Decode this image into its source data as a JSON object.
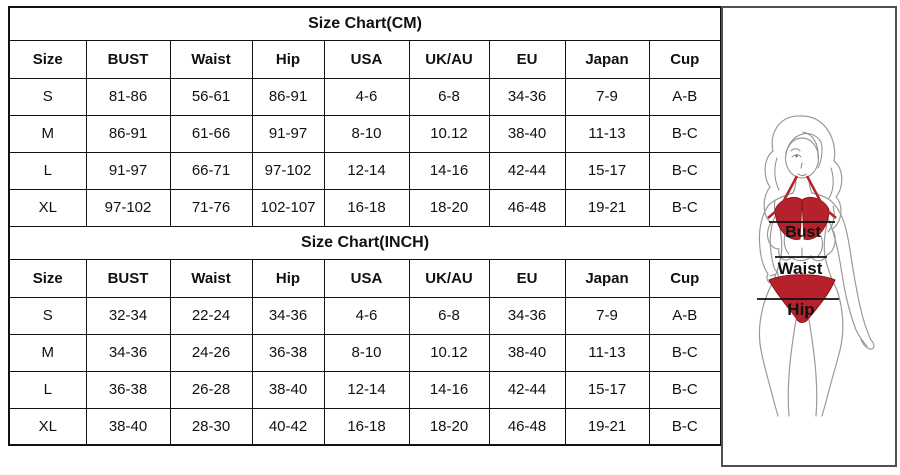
{
  "tables": [
    {
      "title": "Size Chart(CM)",
      "headers": [
        "Size",
        "BUST",
        "Waist",
        "Hip",
        "USA",
        "UK/AU",
        "EU",
        "Japan",
        "Cup"
      ],
      "rows": [
        [
          "S",
          "81-86",
          "56-61",
          "86-91",
          "4-6",
          "6-8",
          "34-36",
          "7-9",
          "A-B"
        ],
        [
          "M",
          "86-91",
          "61-66",
          "91-97",
          "8-10",
          "10.12",
          "38-40",
          "11-13",
          "B-C"
        ],
        [
          "L",
          "91-97",
          "66-71",
          "97-102",
          "12-14",
          "14-16",
          "42-44",
          "15-17",
          "B-C"
        ],
        [
          "XL",
          "97-102",
          "71-76",
          "102-107",
          "16-18",
          "18-20",
          "46-48",
          "19-21",
          "B-C"
        ]
      ]
    },
    {
      "title": "Size Chart(INCH)",
      "headers": [
        "Size",
        "BUST",
        "Waist",
        "Hip",
        "USA",
        "UK/AU",
        "EU",
        "Japan",
        "Cup"
      ],
      "rows": [
        [
          "S",
          "32-34",
          "22-24",
          "34-36",
          "4-6",
          "6-8",
          "34-36",
          "7-9",
          "A-B"
        ],
        [
          "M",
          "34-36",
          "24-26",
          "36-38",
          "8-10",
          "10.12",
          "38-40",
          "11-13",
          "B-C"
        ],
        [
          "L",
          "36-38",
          "26-28",
          "38-40",
          "12-14",
          "14-16",
          "42-44",
          "15-17",
          "B-C"
        ],
        [
          "XL",
          "38-40",
          "28-30",
          "40-42",
          "16-18",
          "18-20",
          "46-48",
          "19-21",
          "B-C"
        ]
      ]
    }
  ],
  "figure": {
    "labels": {
      "bust": "Bust",
      "waist": "Waist",
      "hip": "Hip"
    },
    "bikini_color": "#b6222b",
    "bikini_edge_color": "#8e161d",
    "outline_color": "#9a9a9a",
    "measure_line_color": "#111111"
  }
}
